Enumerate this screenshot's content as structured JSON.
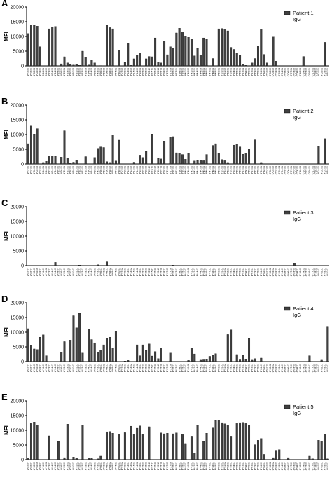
{
  "categories": [
    "A*01:01",
    "A*02:01",
    "A*02:03",
    "A*02:06",
    "A*03:01",
    "A*11:01",
    "A*11:02",
    "A*23:01",
    "A*24:02",
    "A*24:03",
    "A*25:01",
    "A*26:01",
    "A*29:01",
    "A*29:02",
    "A*30:01",
    "A*30:02",
    "A*31:01",
    "A*32:01",
    "A*33:01",
    "A*33:03",
    "A*34:01",
    "A*34:02",
    "A*36:01",
    "A*43:01",
    "A*66:01",
    "A*66:02",
    "A*68:01",
    "A*68:02",
    "A*69:01",
    "A*74:01",
    "A*80:01",
    "B*07:02",
    "B*08:01",
    "B*13:01",
    "B*13:02",
    "B*14:01",
    "B*14:02",
    "B*15:01",
    "B*15:02",
    "B*15:03",
    "B*15:10",
    "B*15:11",
    "B*15:12",
    "B*15:13",
    "B*15:16",
    "B*18:01",
    "B*27:05",
    "B*27:08",
    "B*35:01",
    "B*37:01",
    "B*38:01",
    "B*39:01",
    "B*40:01",
    "B*40:02",
    "B*41:01",
    "B*42:01",
    "B*44:02",
    "B*44:03",
    "B*45:01",
    "B*46:01",
    "B*47:01",
    "B*48:01",
    "B*49:01",
    "B*50:01",
    "B*51:01",
    "B*51:02",
    "B*52:01",
    "B*53:01",
    "B*54:01",
    "B*55:01",
    "B*56:01",
    "B*57:01",
    "B*58:01",
    "B*59:01",
    "B*67:01",
    "B*73:01",
    "B*78:01",
    "B*81:01",
    "B*82:01",
    "C*01:02",
    "C*02:02",
    "C*03:02",
    "C*03:03",
    "C*03:04",
    "C*04:01",
    "C*05:01",
    "C*06:02",
    "C*07:01",
    "C*07:02",
    "C*08:01",
    "C*12:03",
    "C*14:02",
    "C*15:02",
    "C*16:01",
    "C*17:01",
    "C*18:02",
    "A*01:01",
    "A*02:01",
    "A*03:01",
    "A*30:01"
  ],
  "chart_data": [
    {
      "type": "bar",
      "panel": "A",
      "legend": [
        "Patient 1",
        "IgG"
      ],
      "ylabel": "MFI",
      "yticks": [
        "0",
        "5000",
        "10000",
        "15000",
        "20000"
      ],
      "ylim": [
        0,
        20000
      ],
      "series": [
        {
          "name": "Patient 1 IgG",
          "values": [
            11000,
            13900,
            13800,
            13500,
            6500,
            0,
            0,
            12600,
            13300,
            13400,
            0,
            700,
            3100,
            1000,
            500,
            300,
            500,
            200,
            5000,
            2900,
            300,
            2000,
            1000,
            0,
            100,
            0,
            13800,
            13000,
            12600,
            0,
            5400,
            0,
            1200,
            7800,
            200,
            2400,
            3700,
            4400,
            0,
            2400,
            3200,
            3100,
            9500,
            1300,
            1000,
            8500,
            3800,
            6500,
            6000,
            11200,
            12800,
            11500,
            10200,
            9700,
            9200,
            3400,
            5900,
            3700,
            9500,
            9000,
            0,
            2500,
            0,
            12600,
            12700,
            12300,
            11900,
            6300,
            5600,
            4400,
            3600,
            600,
            200,
            0,
            1000,
            2500,
            6700,
            12300,
            3900,
            1000,
            0,
            9800,
            1600,
            0,
            0,
            0,
            0,
            0,
            0,
            0,
            0,
            3200,
            0,
            0,
            0,
            0,
            0,
            0,
            8000,
            0
          ]
        }
      ]
    },
    {
      "type": "bar",
      "panel": "B",
      "legend": [
        "Patient 2",
        "IgG"
      ],
      "ylabel": "MFI",
      "yticks": [
        "0",
        "5000",
        "10000",
        "15000",
        "20000"
      ],
      "ylim": [
        0,
        20000
      ],
      "series": [
        {
          "name": "Patient 2 IgG",
          "values": [
            6900,
            12900,
            10200,
            12000,
            0,
            500,
            900,
            2700,
            2700,
            2600,
            0,
            2300,
            11300,
            2000,
            300,
            600,
            1300,
            0,
            0,
            2500,
            0,
            0,
            2200,
            5300,
            5800,
            5600,
            800,
            500,
            9900,
            1000,
            8100,
            0,
            0,
            0,
            0,
            600,
            0,
            3000,
            2200,
            4300,
            0,
            10200,
            0,
            1900,
            1700,
            7800,
            0,
            9100,
            9300,
            3800,
            3700,
            3200,
            1600,
            3600,
            0,
            1000,
            1200,
            1300,
            1100,
            3200,
            0,
            6300,
            6900,
            3700,
            1500,
            1100,
            500,
            0,
            6400,
            6600,
            5800,
            3300,
            3500,
            5200,
            0,
            8200,
            0,
            500,
            0,
            0,
            0,
            0,
            0,
            0,
            0,
            0,
            0,
            0,
            0,
            0,
            0,
            0,
            0,
            0,
            0,
            0,
            5900,
            0,
            8600,
            0
          ]
        }
      ]
    },
    {
      "type": "bar",
      "panel": "C",
      "legend": [
        "Patient 3",
        "IgG"
      ],
      "ylabel": "MFI",
      "yticks": [
        "0",
        "5000",
        "10000",
        "15000",
        "20000"
      ],
      "ylim": [
        0,
        20000
      ],
      "series": [
        {
          "name": "Patient 3 IgG",
          "values": [
            0,
            0,
            0,
            0,
            0,
            0,
            0,
            0,
            0,
            1100,
            0,
            0,
            0,
            0,
            0,
            0,
            0,
            200,
            0,
            0,
            0,
            0,
            0,
            300,
            0,
            0,
            1300,
            0,
            0,
            0,
            0,
            0,
            0,
            0,
            0,
            0,
            0,
            0,
            0,
            0,
            0,
            0,
            0,
            0,
            0,
            0,
            0,
            0,
            200,
            0,
            0,
            0,
            0,
            0,
            0,
            0,
            0,
            0,
            0,
            0,
            0,
            0,
            0,
            0,
            0,
            0,
            0,
            0,
            0,
            0,
            0,
            0,
            0,
            0,
            0,
            0,
            0,
            0,
            0,
            0,
            0,
            0,
            0,
            0,
            0,
            0,
            0,
            0,
            800,
            0,
            0,
            0,
            0,
            0,
            0,
            0,
            0,
            0,
            0,
            0
          ]
        }
      ]
    },
    {
      "type": "bar",
      "panel": "D",
      "legend": [
        "Patient 4",
        "IgG"
      ],
      "ylabel": "MFI",
      "yticks": [
        "0",
        "5000",
        "10000",
        "15000",
        "20000"
      ],
      "ylim": [
        0,
        20000
      ],
      "series": [
        {
          "name": "Patient 4 IgG",
          "values": [
            11200,
            5600,
            4300,
            4100,
            8300,
            9100,
            2000,
            0,
            0,
            0,
            0,
            3200,
            6800,
            0,
            7300,
            15600,
            11500,
            16400,
            2900,
            0,
            10900,
            7500,
            6400,
            3300,
            3900,
            5700,
            8000,
            8300,
            4700,
            10300,
            0,
            0,
            200,
            400,
            0,
            0,
            5700,
            2000,
            5700,
            3800,
            6000,
            1900,
            3400,
            1000,
            4700,
            0,
            0,
            2900,
            0,
            0,
            0,
            0,
            0,
            400,
            4600,
            2600,
            0,
            500,
            600,
            700,
            1800,
            2100,
            2700,
            0,
            0,
            0,
            9200,
            10800,
            0,
            2400,
            600,
            2100,
            700,
            7800,
            500,
            1000,
            0,
            1200,
            0,
            0,
            0,
            0,
            0,
            0,
            0,
            0,
            0,
            0,
            0,
            0,
            0,
            0,
            0,
            2000,
            0,
            0,
            0,
            500,
            0,
            12000
          ]
        }
      ]
    },
    {
      "type": "bar",
      "panel": "E",
      "legend": [
        "Patient 5",
        "IgG"
      ],
      "ylabel": "MFI",
      "yticks": [
        "0",
        "5000",
        "10000",
        "15000",
        "20000"
      ],
      "ylim": [
        0,
        20000
      ],
      "series": [
        {
          "name": "Patient 5 IgG",
          "values": [
            600,
            12300,
            12800,
            11700,
            0,
            0,
            0,
            8100,
            0,
            0,
            6200,
            0,
            700,
            12100,
            0,
            900,
            600,
            0,
            11800,
            0,
            600,
            600,
            0,
            300,
            1200,
            0,
            9500,
            9600,
            9000,
            0,
            8700,
            0,
            9200,
            0,
            11400,
            8500,
            10700,
            11500,
            8500,
            0,
            11200,
            0,
            0,
            0,
            9100,
            8800,
            9000,
            0,
            8800,
            9100,
            0,
            8500,
            5500,
            0,
            8000,
            2200,
            11600,
            0,
            6200,
            9000,
            0,
            10800,
            13300,
            13500,
            12600,
            12200,
            11600,
            8000,
            0,
            12300,
            12600,
            12700,
            12300,
            11700,
            0,
            5100,
            6600,
            7200,
            1800,
            0,
            0,
            700,
            3200,
            3400,
            0,
            0,
            700,
            0,
            0,
            0,
            0,
            0,
            0,
            1200,
            300,
            0,
            6600,
            6300,
            8700,
            300
          ]
        }
      ]
    }
  ],
  "colors": {
    "bar_fill": "#404040",
    "axis": "#000000",
    "bg": "#ffffff"
  }
}
